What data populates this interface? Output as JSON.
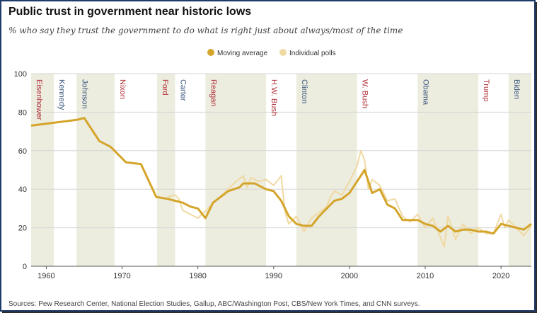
{
  "title": "Public trust in government near historic lows",
  "subtitle": "% who say they trust the government to do what is right just about always/most of the time",
  "source": "Sources: Pew Research Center, National Election Studies, Gallup, ABC/Washington Post, CBS/New York Times, and CNN surveys.",
  "colors": {
    "moving_average": "#d4a52a",
    "individual_polls": "#f0d9a2",
    "republican": "#b2343c",
    "democrat": "#3d5a80",
    "shade": "#ececdf"
  },
  "chart_data": {
    "type": "line",
    "x_domain": [
      1958,
      2024
    ],
    "ylim": [
      0,
      100
    ],
    "yticks": [
      0,
      20,
      40,
      60,
      80,
      100
    ],
    "xticks": [
      1960,
      1970,
      1980,
      1990,
      2000,
      2010,
      2020
    ],
    "legend": {
      "position": "top-center",
      "labels": [
        "Moving average",
        "Individual polls"
      ]
    },
    "presidents": [
      {
        "name": "Eisenhower",
        "start": 1958,
        "end": 1961,
        "party": "R"
      },
      {
        "name": "Kennedy",
        "start": 1961,
        "end": 1964,
        "party": "D"
      },
      {
        "name": "Johnson",
        "start": 1964,
        "end": 1969,
        "party": "D"
      },
      {
        "name": "Nixon",
        "start": 1969,
        "end": 1974.6,
        "party": "R"
      },
      {
        "name": "Ford",
        "start": 1974.6,
        "end": 1977,
        "party": "R"
      },
      {
        "name": "Carter",
        "start": 1977,
        "end": 1981,
        "party": "D"
      },
      {
        "name": "Reagan",
        "start": 1981,
        "end": 1989,
        "party": "R"
      },
      {
        "name": "H.W. Bush",
        "start": 1989,
        "end": 1993,
        "party": "R"
      },
      {
        "name": "Clinton",
        "start": 1993,
        "end": 2001,
        "party": "D"
      },
      {
        "name": "W. Bush",
        "start": 2001,
        "end": 2009,
        "party": "R"
      },
      {
        "name": "Obama",
        "start": 2009,
        "end": 2017,
        "party": "D"
      },
      {
        "name": "Trump",
        "start": 2017,
        "end": 2021,
        "party": "R"
      },
      {
        "name": "Biden",
        "start": 2021,
        "end": 2024,
        "party": "D"
      }
    ],
    "series": [
      {
        "name": "Moving average",
        "points": [
          [
            1958,
            73
          ],
          [
            1964,
            76
          ],
          [
            1965,
            77
          ],
          [
            1967,
            65
          ],
          [
            1968.5,
            62
          ],
          [
            1970.5,
            54
          ],
          [
            1972.5,
            53
          ],
          [
            1974.5,
            36
          ],
          [
            1976,
            35
          ],
          [
            1977,
            34
          ],
          [
            1978,
            33
          ],
          [
            1979,
            31
          ],
          [
            1980,
            30
          ],
          [
            1981,
            25
          ],
          [
            1982,
            33
          ],
          [
            1984,
            39
          ],
          [
            1985.5,
            41
          ],
          [
            1986,
            43
          ],
          [
            1987.5,
            43
          ],
          [
            1988,
            42
          ],
          [
            1989,
            40
          ],
          [
            1990,
            39
          ],
          [
            1991,
            34
          ],
          [
            1992,
            26
          ],
          [
            1993,
            22
          ],
          [
            1994,
            21
          ],
          [
            1995,
            21
          ],
          [
            1996,
            26
          ],
          [
            1997,
            30
          ],
          [
            1998,
            34
          ],
          [
            1999,
            35
          ],
          [
            2000,
            38
          ],
          [
            2001,
            44
          ],
          [
            2001.5,
            47
          ],
          [
            2002,
            50
          ],
          [
            2002.5,
            44
          ],
          [
            2003,
            38
          ],
          [
            2004,
            40
          ],
          [
            2005,
            32
          ],
          [
            2006,
            30
          ],
          [
            2007,
            24
          ],
          [
            2008,
            24
          ],
          [
            2009,
            24
          ],
          [
            2010,
            22
          ],
          [
            2011,
            21
          ],
          [
            2012,
            18
          ],
          [
            2013,
            21
          ],
          [
            2014,
            18
          ],
          [
            2015,
            19
          ],
          [
            2016,
            19
          ],
          [
            2017,
            18
          ],
          [
            2018,
            18
          ],
          [
            2019,
            17
          ],
          [
            2020,
            22
          ],
          [
            2021,
            21
          ],
          [
            2022,
            20
          ],
          [
            2023,
            19
          ],
          [
            2024,
            22
          ]
        ]
      },
      {
        "name": "Individual polls",
        "points": [
          [
            1976,
            36
          ],
          [
            1977,
            37
          ],
          [
            1977.5,
            35
          ],
          [
            1978,
            29
          ],
          [
            1979,
            27
          ],
          [
            1980,
            25
          ],
          [
            1984,
            40
          ],
          [
            1985,
            44
          ],
          [
            1986,
            47
          ],
          [
            1986.5,
            41
          ],
          [
            1987,
            46
          ],
          [
            1988,
            44
          ],
          [
            1989,
            45
          ],
          [
            1990,
            42
          ],
          [
            1991,
            47
          ],
          [
            1991.5,
            28
          ],
          [
            1992,
            22
          ],
          [
            1993,
            26
          ],
          [
            1993.5,
            22
          ],
          [
            1994,
            18
          ],
          [
            1995,
            25
          ],
          [
            1996,
            28
          ],
          [
            1997,
            31
          ],
          [
            1997.5,
            36
          ],
          [
            1998,
            39
          ],
          [
            1999,
            37
          ],
          [
            2000,
            44
          ],
          [
            2001,
            52
          ],
          [
            2001.5,
            60
          ],
          [
            2002,
            55
          ],
          [
            2002.5,
            40
          ],
          [
            2003,
            45
          ],
          [
            2004,
            42
          ],
          [
            2005,
            34
          ],
          [
            2006,
            35
          ],
          [
            2007,
            26
          ],
          [
            2008,
            23
          ],
          [
            2009,
            27
          ],
          [
            2010,
            20
          ],
          [
            2011,
            25
          ],
          [
            2012,
            15
          ],
          [
            2012.5,
            10
          ],
          [
            2013,
            26
          ],
          [
            2014,
            14
          ],
          [
            2015,
            22
          ],
          [
            2016,
            17
          ],
          [
            2017,
            20
          ],
          [
            2018,
            17
          ],
          [
            2019,
            17
          ],
          [
            2020,
            27
          ],
          [
            2020.5,
            20
          ],
          [
            2021,
            24
          ],
          [
            2022,
            20
          ],
          [
            2023,
            16
          ],
          [
            2024,
            21
          ]
        ]
      }
    ]
  }
}
